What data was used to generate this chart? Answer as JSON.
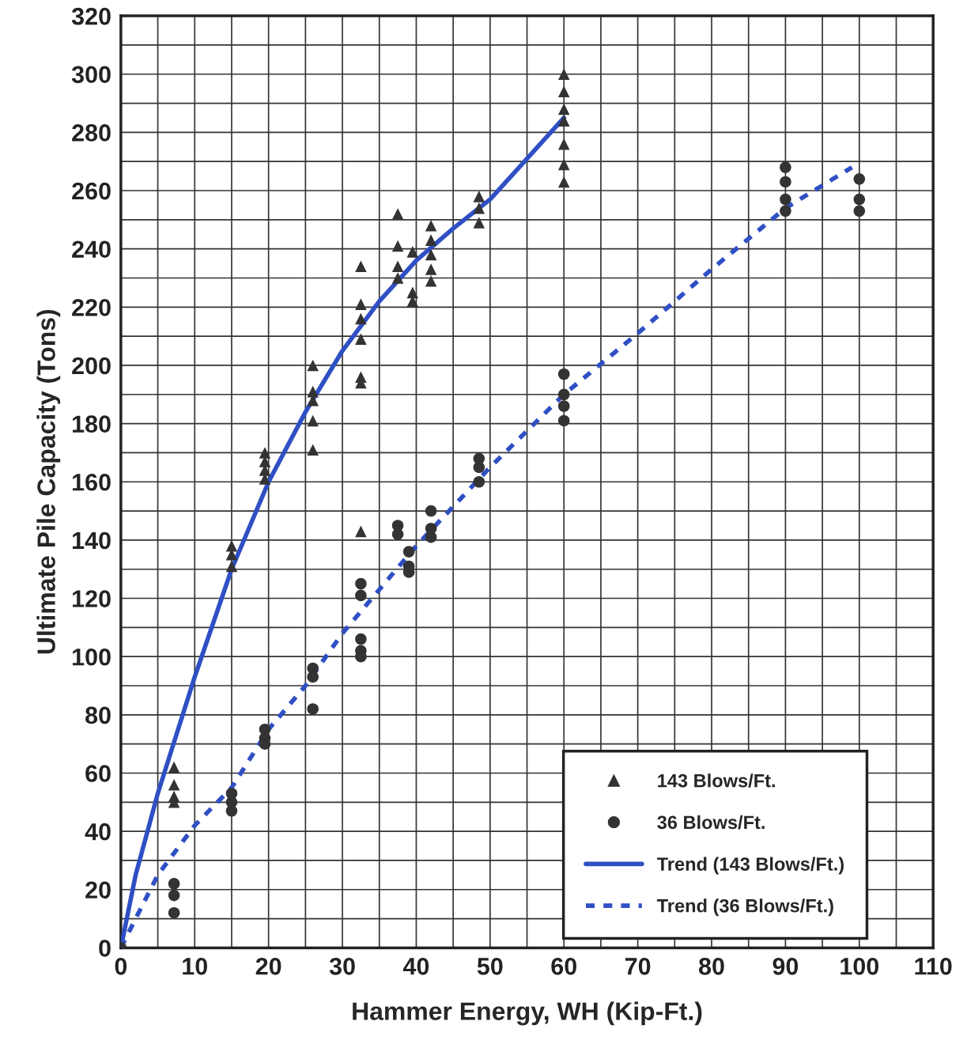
{
  "chart_data": {
    "type": "scatter",
    "xlabel": "Hammer Energy, WH (Kip-Ft.)",
    "ylabel": "Ultimate Pile Capacity (Tons)",
    "xlim": [
      0,
      110
    ],
    "ylim": [
      0,
      320
    ],
    "xticks": [
      0,
      {
        "value": 5,
        "label": null
      },
      10,
      {
        "value": 15,
        "label": null
      },
      20,
      {
        "value": 25,
        "label": null
      },
      30,
      {
        "value": 35,
        "label": null
      },
      40,
      {
        "value": 45,
        "label": null
      },
      50,
      {
        "value": 55,
        "label": null
      },
      60,
      {
        "value": 65,
        "label": null
      },
      70,
      {
        "value": 75,
        "label": null
      },
      80,
      {
        "value": 85,
        "label": null
      },
      90,
      {
        "value": 95,
        "label": null
      },
      100,
      {
        "value": 105,
        "label": null
      },
      110
    ],
    "yticks": [
      0,
      {
        "value": 10,
        "label": null
      },
      20,
      {
        "value": 30,
        "label": null
      },
      40,
      {
        "value": 50,
        "label": null
      },
      60,
      {
        "value": 70,
        "label": null
      },
      80,
      {
        "value": 90,
        "label": null
      },
      100,
      {
        "value": 110,
        "label": null
      },
      120,
      {
        "value": 130,
        "label": null
      },
      140,
      {
        "value": 150,
        "label": null
      },
      160,
      {
        "value": 170,
        "label": null
      },
      180,
      {
        "value": 190,
        "label": null
      },
      200,
      {
        "value": 210,
        "label": null
      },
      220,
      {
        "value": 230,
        "label": null
      },
      240,
      {
        "value": 250,
        "label": null
      },
      260,
      {
        "value": 270,
        "label": null
      },
      280,
      {
        "value": 290,
        "label": null
      },
      300,
      {
        "value": 310,
        "label": null
      },
      320
    ],
    "grid": true,
    "legend": "bottom right",
    "series": [
      {
        "name": "143 Blows/Ft.",
        "marker": "triangle",
        "color": "#333333",
        "x": [
          7.2,
          7.2,
          7.2,
          7.2,
          15,
          15,
          15,
          19.5,
          19.5,
          19.5,
          19.5,
          26,
          26,
          26,
          26,
          26,
          32.5,
          32.5,
          32.5,
          32.5,
          32.5,
          32.5,
          32.5,
          37.5,
          37.5,
          37.5,
          37.5,
          39.5,
          39.5,
          39.5,
          42,
          42,
          42,
          42,
          42,
          48.5,
          48.5,
          48.5,
          60,
          60,
          60,
          60,
          60,
          60,
          60
        ],
        "values": [
          62,
          56,
          52,
          50,
          138,
          135,
          131,
          170,
          167,
          164,
          161,
          200,
          191,
          188,
          181,
          171,
          234,
          221,
          216,
          209,
          196,
          194,
          143,
          252,
          241,
          234,
          230,
          239,
          225,
          222,
          248,
          243,
          238,
          233,
          229,
          258,
          254,
          249,
          300,
          294,
          288,
          284,
          276,
          269,
          263
        ]
      },
      {
        "name": "36 Blows/Ft.",
        "marker": "circle",
        "color": "#333333",
        "x": [
          0,
          7.2,
          7.2,
          7.2,
          15,
          15,
          15,
          19.5,
          19.5,
          19.5,
          26,
          26,
          26,
          32.5,
          32.5,
          32.5,
          32.5,
          32.5,
          37.5,
          37.5,
          39,
          39,
          39,
          42,
          42,
          42,
          48.5,
          48.5,
          48.5,
          60,
          60,
          60,
          60,
          90,
          90,
          90,
          90,
          100,
          100,
          100
        ],
        "values": [
          0,
          22,
          18,
          12,
          53,
          50,
          47,
          75,
          72,
          70,
          96,
          93,
          82,
          125,
          121,
          106,
          102,
          100,
          145,
          142,
          136,
          131,
          129,
          150,
          144,
          141,
          168,
          165,
          160,
          197,
          190,
          186,
          181,
          268,
          263,
          257,
          253,
          264,
          257,
          253
        ]
      },
      {
        "name": "Trend (143 Blows/Ft.)",
        "type": "line",
        "line_style": "solid",
        "color": "#2f4fc4",
        "x": [
          0,
          2,
          5,
          10,
          15,
          20,
          25,
          30,
          35,
          40,
          45,
          50,
          55,
          60
        ],
        "values": [
          0,
          25,
          53,
          93,
          130,
          160,
          184,
          205,
          222,
          236,
          247,
          257,
          271,
          285
        ]
      },
      {
        "name": "Trend (36 Blows/Ft.)",
        "type": "line",
        "line_style": "dashed",
        "color": "#2f4fc4",
        "x": [
          0,
          5,
          10,
          15,
          20,
          25,
          30,
          40,
          50,
          60,
          70,
          80,
          90,
          99
        ],
        "values": [
          0,
          25,
          42,
          55,
          75,
          90,
          108,
          138,
          165,
          190,
          211,
          233,
          254,
          268
        ]
      }
    ]
  }
}
